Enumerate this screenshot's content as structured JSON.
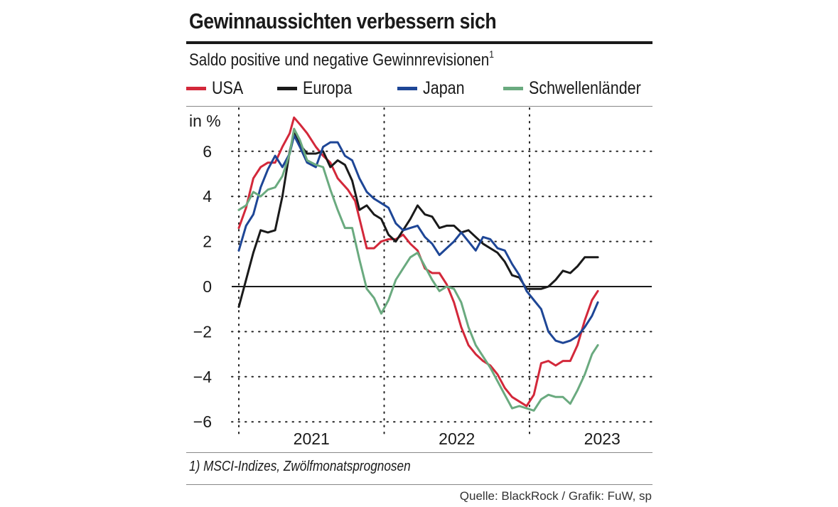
{
  "title": "Gewinnaussichten verbessern sich",
  "subtitle": "Saldo positive und negative Gewinnrevisionen",
  "subtitle_note": "1",
  "footnote": "1) MSCI-Indizes, Zwölfmonatsprognosen",
  "source": "Quelle: BlackRock / Grafik: FuW, sp",
  "chart_data": {
    "type": "line",
    "title": "Gewinnaussichten verbessern sich",
    "ylabel": "in %",
    "xlabel": "",
    "ylim": [
      -6,
      7.7
    ],
    "yticks": [
      6,
      4,
      2,
      0,
      -2,
      -4,
      -6
    ],
    "ytick_labels": [
      "6",
      "4",
      "2",
      "0",
      "−2",
      "−4",
      "−6"
    ],
    "xlim": [
      2020.42,
      2023.45
    ],
    "xticks": [
      2021.0,
      2022.0,
      2023.0
    ],
    "xtick_labels": [
      "2021",
      "2022",
      "2023"
    ],
    "vertical_grid_at": [
      2020.5,
      2021.5,
      2022.5
    ],
    "legend_position": "top",
    "series": [
      {
        "name": "USA",
        "color": "#d3283a",
        "points": [
          [
            2020.5,
            2.6
          ],
          [
            2020.55,
            3.5
          ],
          [
            2020.6,
            4.8
          ],
          [
            2020.65,
            5.3
          ],
          [
            2020.7,
            5.5
          ],
          [
            2020.75,
            5.5
          ],
          [
            2020.8,
            6.2
          ],
          [
            2020.85,
            6.8
          ],
          [
            2020.88,
            7.5
          ],
          [
            2020.92,
            7.2
          ],
          [
            2020.97,
            6.8
          ],
          [
            2021.03,
            6.2
          ],
          [
            2021.08,
            5.8
          ],
          [
            2021.13,
            5.5
          ],
          [
            2021.18,
            4.8
          ],
          [
            2021.25,
            4.3
          ],
          [
            2021.3,
            3.8
          ],
          [
            2021.35,
            2.5
          ],
          [
            2021.38,
            1.7
          ],
          [
            2021.43,
            1.7
          ],
          [
            2021.48,
            2.0
          ],
          [
            2021.53,
            2.1
          ],
          [
            2021.58,
            2.1
          ],
          [
            2021.63,
            2.3
          ],
          [
            2021.68,
            1.9
          ],
          [
            2021.73,
            1.6
          ],
          [
            2021.78,
            0.8
          ],
          [
            2021.83,
            0.6
          ],
          [
            2021.88,
            0.6
          ],
          [
            2021.93,
            0.1
          ],
          [
            2021.98,
            -0.7
          ],
          [
            2022.03,
            -1.8
          ],
          [
            2022.08,
            -2.6
          ],
          [
            2022.13,
            -3.0
          ],
          [
            2022.18,
            -3.3
          ],
          [
            2022.23,
            -3.5
          ],
          [
            2022.28,
            -3.9
          ],
          [
            2022.33,
            -4.5
          ],
          [
            2022.38,
            -4.9
          ],
          [
            2022.43,
            -5.1
          ],
          [
            2022.48,
            -5.3
          ],
          [
            2022.53,
            -4.8
          ],
          [
            2022.58,
            -3.4
          ],
          [
            2022.63,
            -3.3
          ],
          [
            2022.68,
            -3.5
          ],
          [
            2022.73,
            -3.3
          ],
          [
            2022.78,
            -3.3
          ],
          [
            2022.83,
            -2.6
          ],
          [
            2022.88,
            -1.5
          ],
          [
            2022.93,
            -0.6
          ],
          [
            2022.97,
            -0.2
          ]
        ]
      },
      {
        "name": "Europa",
        "color": "#1a1a1a",
        "points": [
          [
            2020.5,
            -0.9
          ],
          [
            2020.55,
            0.3
          ],
          [
            2020.6,
            1.5
          ],
          [
            2020.65,
            2.5
          ],
          [
            2020.7,
            2.4
          ],
          [
            2020.75,
            2.5
          ],
          [
            2020.8,
            4.0
          ],
          [
            2020.85,
            6.0
          ],
          [
            2020.88,
            6.8
          ],
          [
            2020.92,
            6.3
          ],
          [
            2020.97,
            5.9
          ],
          [
            2021.03,
            5.9
          ],
          [
            2021.08,
            6.0
          ],
          [
            2021.13,
            5.3
          ],
          [
            2021.18,
            5.6
          ],
          [
            2021.23,
            5.4
          ],
          [
            2021.28,
            4.7
          ],
          [
            2021.33,
            3.4
          ],
          [
            2021.38,
            3.6
          ],
          [
            2021.43,
            3.2
          ],
          [
            2021.48,
            3.0
          ],
          [
            2021.53,
            2.3
          ],
          [
            2021.58,
            2.0
          ],
          [
            2021.63,
            2.5
          ],
          [
            2021.68,
            3.0
          ],
          [
            2021.73,
            3.6
          ],
          [
            2021.78,
            3.2
          ],
          [
            2021.83,
            3.1
          ],
          [
            2021.88,
            2.6
          ],
          [
            2021.93,
            2.7
          ],
          [
            2021.98,
            2.7
          ],
          [
            2022.03,
            2.4
          ],
          [
            2022.08,
            2.5
          ],
          [
            2022.13,
            2.2
          ],
          [
            2022.18,
            1.9
          ],
          [
            2022.23,
            1.7
          ],
          [
            2022.28,
            1.5
          ],
          [
            2022.33,
            1.1
          ],
          [
            2022.38,
            0.5
          ],
          [
            2022.43,
            0.4
          ],
          [
            2022.48,
            -0.1
          ],
          [
            2022.53,
            -0.1
          ],
          [
            2022.58,
            -0.1
          ],
          [
            2022.63,
            0.0
          ],
          [
            2022.68,
            0.3
          ],
          [
            2022.73,
            0.7
          ],
          [
            2022.78,
            0.6
          ],
          [
            2022.83,
            0.9
          ],
          [
            2022.88,
            1.3
          ],
          [
            2022.93,
            1.3
          ],
          [
            2022.97,
            1.3
          ]
        ]
      },
      {
        "name": "Japan",
        "color": "#1e4696",
        "points": [
          [
            2020.5,
            1.6
          ],
          [
            2020.55,
            2.7
          ],
          [
            2020.6,
            3.2
          ],
          [
            2020.65,
            4.4
          ],
          [
            2020.7,
            5.2
          ],
          [
            2020.75,
            5.8
          ],
          [
            2020.8,
            5.3
          ],
          [
            2020.85,
            5.9
          ],
          [
            2020.88,
            6.7
          ],
          [
            2020.92,
            6.2
          ],
          [
            2020.97,
            5.5
          ],
          [
            2021.03,
            5.3
          ],
          [
            2021.08,
            6.2
          ],
          [
            2021.13,
            6.4
          ],
          [
            2021.18,
            6.4
          ],
          [
            2021.23,
            5.8
          ],
          [
            2021.28,
            5.6
          ],
          [
            2021.33,
            4.8
          ],
          [
            2021.38,
            4.2
          ],
          [
            2021.43,
            3.9
          ],
          [
            2021.48,
            3.7
          ],
          [
            2021.53,
            3.5
          ],
          [
            2021.58,
            2.8
          ],
          [
            2021.63,
            2.5
          ],
          [
            2021.68,
            2.6
          ],
          [
            2021.73,
            2.7
          ],
          [
            2021.78,
            2.2
          ],
          [
            2021.83,
            1.9
          ],
          [
            2021.88,
            1.4
          ],
          [
            2021.93,
            1.7
          ],
          [
            2021.98,
            2.0
          ],
          [
            2022.03,
            2.4
          ],
          [
            2022.08,
            2.0
          ],
          [
            2022.13,
            1.6
          ],
          [
            2022.18,
            2.2
          ],
          [
            2022.23,
            2.1
          ],
          [
            2022.28,
            1.7
          ],
          [
            2022.33,
            1.6
          ],
          [
            2022.38,
            1.0
          ],
          [
            2022.43,
            0.5
          ],
          [
            2022.48,
            -0.2
          ],
          [
            2022.53,
            -0.6
          ],
          [
            2022.58,
            -1.0
          ],
          [
            2022.63,
            -2.0
          ],
          [
            2022.68,
            -2.4
          ],
          [
            2022.73,
            -2.5
          ],
          [
            2022.78,
            -2.4
          ],
          [
            2022.83,
            -2.2
          ],
          [
            2022.88,
            -1.8
          ],
          [
            2022.93,
            -1.3
          ],
          [
            2022.97,
            -0.7
          ]
        ]
      },
      {
        "name": "Schwellenländer",
        "color": "#6aaa7f",
        "points": [
          [
            2020.5,
            3.4
          ],
          [
            2020.55,
            3.6
          ],
          [
            2020.6,
            4.2
          ],
          [
            2020.65,
            4.0
          ],
          [
            2020.7,
            4.3
          ],
          [
            2020.75,
            4.4
          ],
          [
            2020.8,
            4.9
          ],
          [
            2020.85,
            5.9
          ],
          [
            2020.88,
            7.0
          ],
          [
            2020.92,
            6.5
          ],
          [
            2020.97,
            5.6
          ],
          [
            2021.03,
            5.4
          ],
          [
            2021.08,
            5.3
          ],
          [
            2021.13,
            4.3
          ],
          [
            2021.18,
            3.4
          ],
          [
            2021.23,
            2.6
          ],
          [
            2021.28,
            2.6
          ],
          [
            2021.33,
            1.2
          ],
          [
            2021.38,
            -0.1
          ],
          [
            2021.43,
            -0.5
          ],
          [
            2021.48,
            -1.2
          ],
          [
            2021.53,
            -0.6
          ],
          [
            2021.58,
            0.3
          ],
          [
            2021.63,
            0.8
          ],
          [
            2021.68,
            1.3
          ],
          [
            2021.73,
            1.5
          ],
          [
            2021.78,
            0.9
          ],
          [
            2021.83,
            0.3
          ],
          [
            2021.88,
            -0.2
          ],
          [
            2021.93,
            0.0
          ],
          [
            2021.98,
            -0.1
          ],
          [
            2022.03,
            -0.7
          ],
          [
            2022.08,
            -1.8
          ],
          [
            2022.13,
            -2.6
          ],
          [
            2022.18,
            -3.1
          ],
          [
            2022.23,
            -3.6
          ],
          [
            2022.28,
            -4.2
          ],
          [
            2022.33,
            -4.8
          ],
          [
            2022.38,
            -5.4
          ],
          [
            2022.43,
            -5.3
          ],
          [
            2022.48,
            -5.4
          ],
          [
            2022.53,
            -5.5
          ],
          [
            2022.58,
            -5.0
          ],
          [
            2022.63,
            -4.8
          ],
          [
            2022.68,
            -4.9
          ],
          [
            2022.73,
            -4.9
          ],
          [
            2022.78,
            -5.2
          ],
          [
            2022.83,
            -4.6
          ],
          [
            2022.88,
            -3.9
          ],
          [
            2022.93,
            -3.0
          ],
          [
            2022.97,
            -2.6
          ]
        ]
      }
    ]
  }
}
